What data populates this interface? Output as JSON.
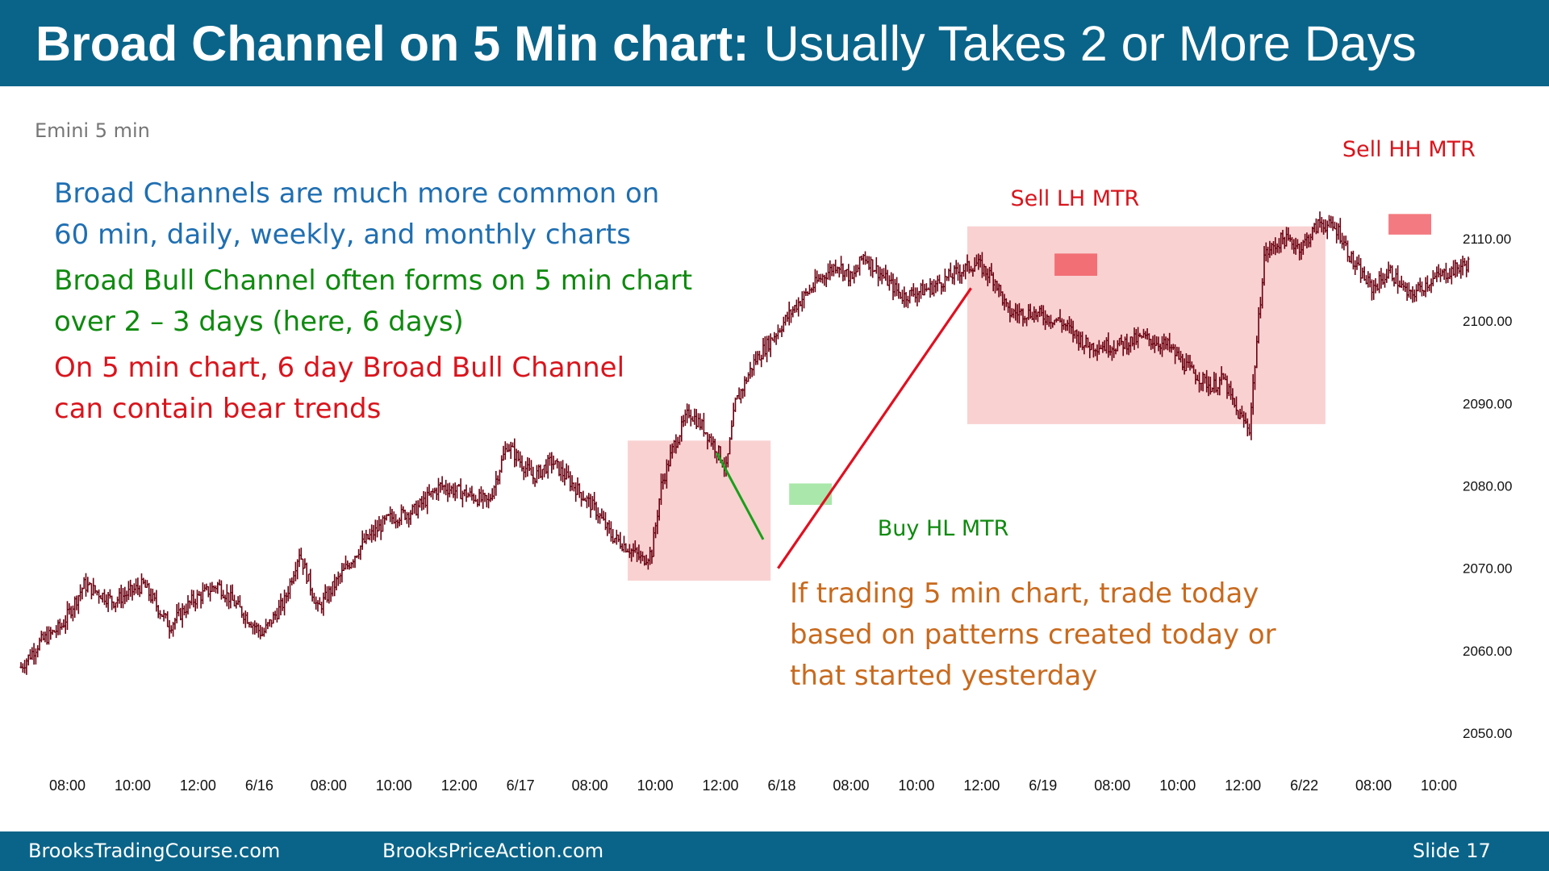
{
  "title": {
    "bold": "Broad Channel on 5 Min chart:",
    "rest": "Usually Takes 2 or More Days"
  },
  "chart_label": "Emini 5 min",
  "notes": {
    "blue": [
      "Broad Channels are much more common on",
      "60 min, daily, weekly, and monthly charts"
    ],
    "green": [
      "Broad Bull Channel often forms on 5 min chart",
      "over 2 – 3 days (here, 6 days)"
    ],
    "red": [
      "On 5 min chart, 6 day Broad Bull Channel",
      "can contain bear trends"
    ],
    "orange": [
      "If trading 5 min chart, trade today",
      "based on patterns created today or",
      "that started yesterday"
    ]
  },
  "footer": {
    "site1": "BrooksTradingCourse.com",
    "site2": "BrooksPriceAction.com",
    "slide": "Slide  17"
  },
  "colors": {
    "header": "#0a6489",
    "bars": "#6b0010",
    "blue_text": "#1f6fb2",
    "green_text": "#0f8a0f",
    "red_text": "#d9141c",
    "orange_text": "#c86a1e",
    "range_box": "#f8c9c9",
    "buy_zone": "#9be39b"
  },
  "chart_data": {
    "type": "candlestick",
    "instrument": "Emini 5 min",
    "y_ticks": [
      "2050.00",
      "2060.00",
      "2070.00",
      "2080.00",
      "2090.00",
      "2100.00",
      "2110.00"
    ],
    "ylim": [
      2043,
      2122
    ],
    "x_ticks": [
      "08:00",
      "10:00",
      "12:00",
      "6/16",
      "08:00",
      "10:00",
      "12:00",
      "6/17",
      "08:00",
      "10:00",
      "12:00",
      "6/18",
      "08:00",
      "10:00",
      "12:00",
      "6/19",
      "08:00",
      "10:00",
      "12:00",
      "6/22",
      "08:00",
      "10:00"
    ],
    "price_path": [
      [
        0,
        2058
      ],
      [
        10,
        2061
      ],
      [
        22,
        2063
      ],
      [
        34,
        2068
      ],
      [
        50,
        2066
      ],
      [
        66,
        2068
      ],
      [
        80,
        2063
      ],
      [
        92,
        2066
      ],
      [
        106,
        2068
      ],
      [
        118,
        2065
      ],
      [
        130,
        2062
      ],
      [
        142,
        2066
      ],
      [
        150,
        2072
      ],
      [
        160,
        2065
      ],
      [
        172,
        2069
      ],
      [
        184,
        2073
      ],
      [
        198,
        2076
      ],
      [
        212,
        2077
      ],
      [
        226,
        2080
      ],
      [
        240,
        2079
      ],
      [
        252,
        2078
      ],
      [
        262,
        2085
      ],
      [
        276,
        2081
      ],
      [
        286,
        2083
      ],
      [
        298,
        2080
      ],
      [
        310,
        2077
      ],
      [
        318,
        2074
      ],
      [
        330,
        2072
      ],
      [
        335,
        2071
      ],
      [
        340,
        2072
      ],
      [
        345,
        2080
      ],
      [
        352,
        2085
      ],
      [
        360,
        2089
      ],
      [
        368,
        2087
      ],
      [
        376,
        2084
      ],
      [
        380,
        2082
      ],
      [
        385,
        2090
      ],
      [
        395,
        2095
      ],
      [
        405,
        2098
      ],
      [
        418,
        2102
      ],
      [
        430,
        2105
      ],
      [
        440,
        2107
      ],
      [
        448,
        2105
      ],
      [
        454,
        2108
      ],
      [
        462,
        2106
      ],
      [
        475,
        2103
      ],
      [
        490,
        2104
      ],
      [
        505,
        2106
      ],
      [
        515,
        2107
      ],
      [
        525,
        2105
      ],
      [
        532,
        2101
      ],
      [
        545,
        2101
      ],
      [
        560,
        2100
      ],
      [
        575,
        2097
      ],
      [
        590,
        2097
      ],
      [
        605,
        2098
      ],
      [
        618,
        2097
      ],
      [
        630,
        2094
      ],
      [
        642,
        2092
      ],
      [
        648,
        2093
      ],
      [
        655,
        2089
      ],
      [
        662,
        2087
      ],
      [
        670,
        2108
      ],
      [
        680,
        2110
      ],
      [
        690,
        2109
      ],
      [
        700,
        2112
      ],
      [
        710,
        2111
      ],
      [
        718,
        2107
      ],
      [
        728,
        2104
      ],
      [
        738,
        2106
      ],
      [
        748,
        2103
      ],
      [
        760,
        2105
      ],
      [
        770,
        2106
      ],
      [
        780,
        2107
      ]
    ],
    "range_boxes": [
      {
        "x_from": 327,
        "x_to": 404,
        "price_from": 2085.5,
        "price_to": 2068.5
      },
      {
        "x_from": 510,
        "x_to": 703,
        "price_from": 2111.5,
        "price_to": 2087.5
      }
    ],
    "buy_zone": {
      "x_from": 414,
      "x_to": 437,
      "price_from": 2080.3,
      "price_to": 2077.7
    },
    "sell_lh_zone": {
      "x_from": 557,
      "x_to": 580,
      "price_from": 2108.2,
      "price_to": 2105.5
    },
    "sell_hh_zone": {
      "x_from": 737,
      "x_to": 760,
      "price_from": 2113,
      "price_to": 2110.5
    },
    "bear_trendline": {
      "x1": 375,
      "y1": 2084,
      "x2": 400,
      "y2": 2073.5
    },
    "bull_trendline": {
      "x1": 408,
      "y1": 2070,
      "x2": 512,
      "y2": 2104
    },
    "annotations": [
      {
        "text": "Buy HL MTR",
        "color": "#0f8a0f",
        "x": 497,
        "price": 2074
      },
      {
        "text": "Sell LH MTR",
        "color": "#d9141c",
        "x": 568,
        "price": 2114
      },
      {
        "text": "Sell HH MTR",
        "color": "#d9141c",
        "x": 748,
        "price": 2120
      }
    ]
  }
}
